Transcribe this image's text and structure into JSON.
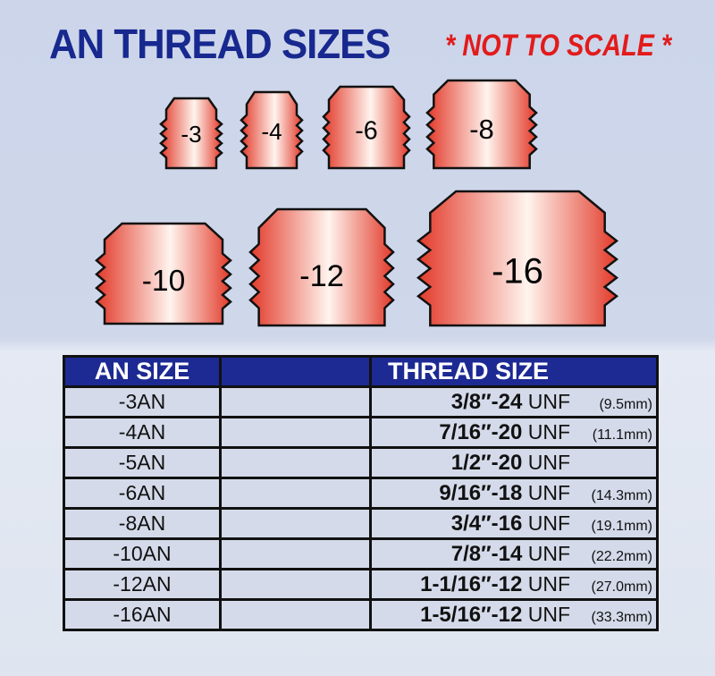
{
  "title": "AN THREAD SIZES",
  "subtitle": "* NOT TO SCALE *",
  "colors": {
    "title": "#17288f",
    "subtitle": "#e21b1b",
    "fitting": "#e8553f",
    "header": "#1d2a93"
  },
  "fittings": [
    "-3",
    "-4",
    "-6",
    "-8",
    "-10",
    "-12",
    "-16"
  ],
  "table": {
    "headers": [
      "AN SIZE",
      "",
      "THREAD SIZE"
    ],
    "rows": [
      {
        "an": "-3AN",
        "thread": "3/8″-24",
        "unit": "UNF",
        "mm": "(9.5mm)"
      },
      {
        "an": "-4AN",
        "thread": "7/16″-20",
        "unit": "UNF",
        "mm": "(11.1mm)"
      },
      {
        "an": "-5AN",
        "thread": "1/2″-20",
        "unit": "UNF",
        "mm": ""
      },
      {
        "an": "-6AN",
        "thread": "9/16″-18",
        "unit": "UNF",
        "mm": "(14.3mm)"
      },
      {
        "an": "-8AN",
        "thread": "3/4″-16",
        "unit": "UNF",
        "mm": "(19.1mm)"
      },
      {
        "an": "-10AN",
        "thread": "7/8″-14",
        "unit": "UNF",
        "mm": "(22.2mm)"
      },
      {
        "an": "-12AN",
        "thread": "1-1/16″-12",
        "unit": "UNF",
        "mm": "(27.0mm)"
      },
      {
        "an": "-16AN",
        "thread": "1-5/16″-12",
        "unit": "UNF",
        "mm": "(33.3mm)"
      }
    ]
  }
}
